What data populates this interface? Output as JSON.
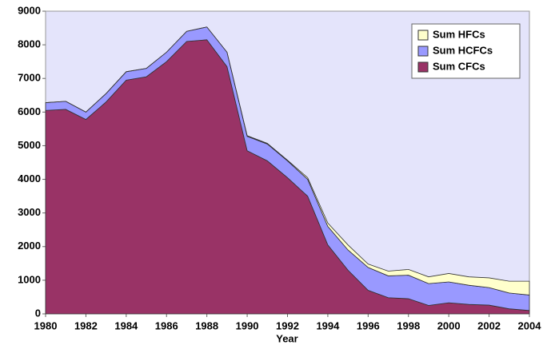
{
  "chart_data": {
    "type": "stacked_area",
    "x_label": "Year",
    "x": [
      1980,
      1981,
      1982,
      1983,
      1984,
      1985,
      1986,
      1987,
      1988,
      1989,
      1990,
      1991,
      1992,
      1993,
      1994,
      1995,
      1996,
      1997,
      1998,
      1999,
      2000,
      2001,
      2002,
      2003,
      2004
    ],
    "xlim": [
      1980,
      2004
    ],
    "xticks": [
      1980,
      1982,
      1984,
      1986,
      1988,
      1990,
      1992,
      1994,
      1996,
      1998,
      2000,
      2002,
      2004
    ],
    "ylim": [
      0,
      9000
    ],
    "yticks": [
      0,
      1000,
      2000,
      3000,
      4000,
      5000,
      6000,
      7000,
      8000,
      9000
    ],
    "legend": "top-right",
    "series": [
      {
        "name": "Sum CFCs",
        "color": "#993366",
        "values": [
          6050,
          6080,
          5780,
          6300,
          6950,
          7050,
          7500,
          8100,
          8150,
          7350,
          4850,
          4550,
          4050,
          3500,
          2050,
          1300,
          700,
          480,
          450,
          250,
          330,
          280,
          260,
          150,
          100
        ]
      },
      {
        "name": "Sum HCFCs",
        "color": "#9999ff",
        "values": [
          230,
          240,
          220,
          250,
          250,
          250,
          280,
          300,
          380,
          430,
          430,
          500,
          500,
          500,
          550,
          600,
          680,
          650,
          700,
          650,
          620,
          570,
          520,
          470,
          460
        ]
      },
      {
        "name": "Sum HFCs",
        "color": "#ffffcc",
        "values": [
          0,
          0,
          0,
          0,
          0,
          0,
          0,
          0,
          0,
          0,
          20,
          20,
          20,
          50,
          100,
          150,
          100,
          140,
          170,
          200,
          250,
          250,
          290,
          350,
          410
        ]
      }
    ]
  }
}
